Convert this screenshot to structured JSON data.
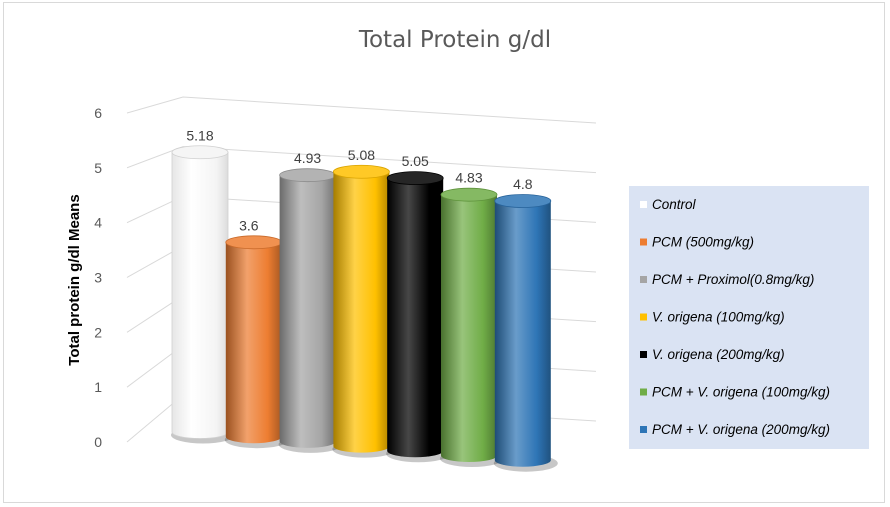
{
  "chart_data": {
    "type": "bar",
    "title": "Total  Protein g/dl",
    "ylabel": "Total protein g/dl Means",
    "ylim": [
      0,
      6
    ],
    "yticks": [
      0,
      1,
      2,
      3,
      4,
      5,
      6
    ],
    "grid": true,
    "legend_position": "right",
    "series": [
      {
        "name": "Control",
        "value": 5.18,
        "label": "5.18",
        "color": "#ffffff"
      },
      {
        "name": "PCM (500mg/kg)",
        "value": 3.6,
        "label": "3.6",
        "color": "#ed7d31"
      },
      {
        "name": "PCM + Proximol(0.8mg/kg)",
        "value": 4.93,
        "label": "4.93",
        "color": "#a5a5a5"
      },
      {
        "name": "V. origena (100mg/kg)",
        "value": 5.08,
        "label": "5.08",
        "color": "#ffc000"
      },
      {
        "name": "V. origena (200mg/kg)",
        "value": 5.05,
        "label": "5.05",
        "color": "#000000"
      },
      {
        "name": " PCM + V. origena (100mg/kg)",
        "value": 4.83,
        "label": "4.83",
        "color": "#70ad47"
      },
      {
        "name": "PCM + V. origena (200mg/kg)",
        "value": 4.8,
        "label": "4.8",
        "color": "#2e75b6"
      }
    ],
    "legend_background": "#dae3f3"
  }
}
